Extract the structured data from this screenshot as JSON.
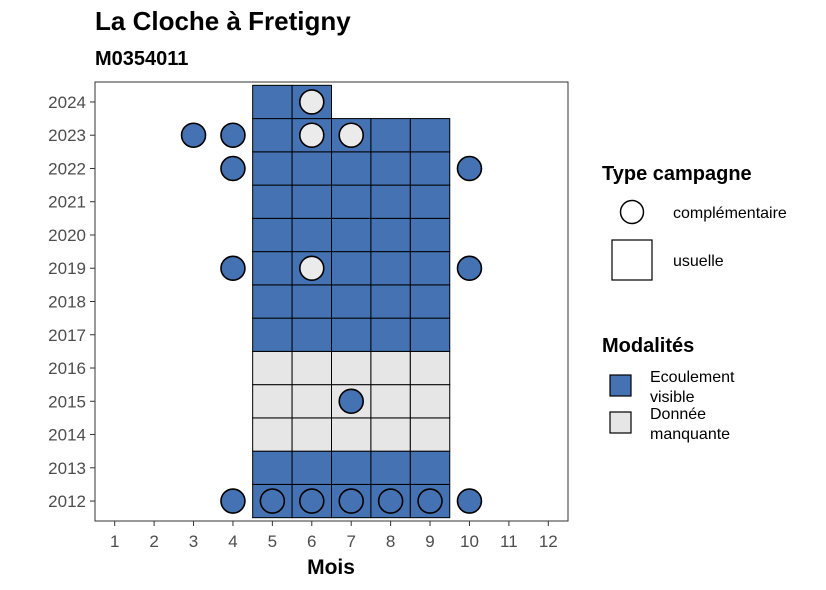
{
  "chart_data": {
    "type": "heatmap",
    "title": "La Cloche à Fretigny",
    "subtitle": "M0354011",
    "xlabel": "Mois",
    "ylabel": "",
    "x_ticks": [
      "1",
      "2",
      "3",
      "4",
      "5",
      "6",
      "7",
      "8",
      "9",
      "10",
      "11",
      "12"
    ],
    "y_ticks": [
      "2012",
      "2013",
      "2014",
      "2015",
      "2016",
      "2017",
      "2018",
      "2019",
      "2020",
      "2021",
      "2022",
      "2023",
      "2024"
    ],
    "xlim": [
      0.5,
      12.5
    ],
    "ylim": [
      2011.4,
      2024.6
    ],
    "grid": false,
    "colors": {
      "Ecoulement visible": "#4472b3",
      "Donnée manquante": "#e6e6e6",
      "complementaire_empty": "#ebebeb"
    },
    "tiles": [
      {
        "year": 2012,
        "month": 5,
        "mod": "Ecoulement visible"
      },
      {
        "year": 2012,
        "month": 6,
        "mod": "Ecoulement visible"
      },
      {
        "year": 2012,
        "month": 7,
        "mod": "Ecoulement visible"
      },
      {
        "year": 2012,
        "month": 8,
        "mod": "Ecoulement visible"
      },
      {
        "year": 2012,
        "month": 9,
        "mod": "Ecoulement visible"
      },
      {
        "year": 2013,
        "month": 5,
        "mod": "Ecoulement visible"
      },
      {
        "year": 2013,
        "month": 6,
        "mod": "Ecoulement visible"
      },
      {
        "year": 2013,
        "month": 7,
        "mod": "Ecoulement visible"
      },
      {
        "year": 2013,
        "month": 8,
        "mod": "Ecoulement visible"
      },
      {
        "year": 2013,
        "month": 9,
        "mod": "Ecoulement visible"
      },
      {
        "year": 2014,
        "month": 5,
        "mod": "Donnée manquante"
      },
      {
        "year": 2014,
        "month": 6,
        "mod": "Donnée manquante"
      },
      {
        "year": 2014,
        "month": 7,
        "mod": "Donnée manquante"
      },
      {
        "year": 2014,
        "month": 8,
        "mod": "Donnée manquante"
      },
      {
        "year": 2014,
        "month": 9,
        "mod": "Donnée manquante"
      },
      {
        "year": 2015,
        "month": 5,
        "mod": "Donnée manquante"
      },
      {
        "year": 2015,
        "month": 6,
        "mod": "Donnée manquante"
      },
      {
        "year": 2015,
        "month": 7,
        "mod": "Donnée manquante"
      },
      {
        "year": 2015,
        "month": 8,
        "mod": "Donnée manquante"
      },
      {
        "year": 2015,
        "month": 9,
        "mod": "Donnée manquante"
      },
      {
        "year": 2016,
        "month": 5,
        "mod": "Donnée manquante"
      },
      {
        "year": 2016,
        "month": 6,
        "mod": "Donnée manquante"
      },
      {
        "year": 2016,
        "month": 7,
        "mod": "Donnée manquante"
      },
      {
        "year": 2016,
        "month": 8,
        "mod": "Donnée manquante"
      },
      {
        "year": 2016,
        "month": 9,
        "mod": "Donnée manquante"
      },
      {
        "year": 2017,
        "month": 5,
        "mod": "Ecoulement visible"
      },
      {
        "year": 2017,
        "month": 6,
        "mod": "Ecoulement visible"
      },
      {
        "year": 2017,
        "month": 7,
        "mod": "Ecoulement visible"
      },
      {
        "year": 2017,
        "month": 8,
        "mod": "Ecoulement visible"
      },
      {
        "year": 2017,
        "month": 9,
        "mod": "Ecoulement visible"
      },
      {
        "year": 2018,
        "month": 5,
        "mod": "Ecoulement visible"
      },
      {
        "year": 2018,
        "month": 6,
        "mod": "Ecoulement visible"
      },
      {
        "year": 2018,
        "month": 7,
        "mod": "Ecoulement visible"
      },
      {
        "year": 2018,
        "month": 8,
        "mod": "Ecoulement visible"
      },
      {
        "year": 2018,
        "month": 9,
        "mod": "Ecoulement visible"
      },
      {
        "year": 2019,
        "month": 5,
        "mod": "Ecoulement visible"
      },
      {
        "year": 2019,
        "month": 6,
        "mod": "Ecoulement visible"
      },
      {
        "year": 2019,
        "month": 7,
        "mod": "Ecoulement visible"
      },
      {
        "year": 2019,
        "month": 8,
        "mod": "Ecoulement visible"
      },
      {
        "year": 2019,
        "month": 9,
        "mod": "Ecoulement visible"
      },
      {
        "year": 2020,
        "month": 5,
        "mod": "Ecoulement visible"
      },
      {
        "year": 2020,
        "month": 6,
        "mod": "Ecoulement visible"
      },
      {
        "year": 2020,
        "month": 7,
        "mod": "Ecoulement visible"
      },
      {
        "year": 2020,
        "month": 8,
        "mod": "Ecoulement visible"
      },
      {
        "year": 2020,
        "month": 9,
        "mod": "Ecoulement visible"
      },
      {
        "year": 2021,
        "month": 5,
        "mod": "Ecoulement visible"
      },
      {
        "year": 2021,
        "month": 6,
        "mod": "Ecoulement visible"
      },
      {
        "year": 2021,
        "month": 7,
        "mod": "Ecoulement visible"
      },
      {
        "year": 2021,
        "month": 8,
        "mod": "Ecoulement visible"
      },
      {
        "year": 2021,
        "month": 9,
        "mod": "Ecoulement visible"
      },
      {
        "year": 2022,
        "month": 5,
        "mod": "Ecoulement visible"
      },
      {
        "year": 2022,
        "month": 6,
        "mod": "Ecoulement visible"
      },
      {
        "year": 2022,
        "month": 7,
        "mod": "Ecoulement visible"
      },
      {
        "year": 2022,
        "month": 8,
        "mod": "Ecoulement visible"
      },
      {
        "year": 2022,
        "month": 9,
        "mod": "Ecoulement visible"
      },
      {
        "year": 2023,
        "month": 5,
        "mod": "Ecoulement visible"
      },
      {
        "year": 2023,
        "month": 6,
        "mod": "Ecoulement visible"
      },
      {
        "year": 2023,
        "month": 7,
        "mod": "Ecoulement visible"
      },
      {
        "year": 2023,
        "month": 8,
        "mod": "Ecoulement visible"
      },
      {
        "year": 2023,
        "month": 9,
        "mod": "Ecoulement visible"
      },
      {
        "year": 2024,
        "month": 5,
        "mod": "Ecoulement visible"
      },
      {
        "year": 2024,
        "month": 6,
        "mod": "Ecoulement visible"
      }
    ],
    "points": [
      {
        "year": 2024,
        "month": 6,
        "fill": "empty"
      },
      {
        "year": 2023,
        "month": 3,
        "fill": "Ecoulement visible"
      },
      {
        "year": 2023,
        "month": 4,
        "fill": "Ecoulement visible"
      },
      {
        "year": 2023,
        "month": 6,
        "fill": "empty"
      },
      {
        "year": 2023,
        "month": 7,
        "fill": "empty"
      },
      {
        "year": 2022,
        "month": 4,
        "fill": "Ecoulement visible"
      },
      {
        "year": 2022,
        "month": 10,
        "fill": "Ecoulement visible"
      },
      {
        "year": 2019,
        "month": 4,
        "fill": "Ecoulement visible"
      },
      {
        "year": 2019,
        "month": 6,
        "fill": "empty"
      },
      {
        "year": 2019,
        "month": 10,
        "fill": "Ecoulement visible"
      },
      {
        "year": 2015,
        "month": 7,
        "fill": "Ecoulement visible"
      },
      {
        "year": 2012,
        "month": 4,
        "fill": "Ecoulement visible"
      },
      {
        "year": 2012,
        "month": 5,
        "fill": "Ecoulement visible"
      },
      {
        "year": 2012,
        "month": 6,
        "fill": "Ecoulement visible"
      },
      {
        "year": 2012,
        "month": 7,
        "fill": "Ecoulement visible"
      },
      {
        "year": 2012,
        "month": 8,
        "fill": "Ecoulement visible"
      },
      {
        "year": 2012,
        "month": 9,
        "fill": "Ecoulement visible"
      },
      {
        "year": 2012,
        "month": 10,
        "fill": "Ecoulement visible"
      }
    ],
    "legend": {
      "placement": "right",
      "shape_title": "Type campagne",
      "shape_items": [
        {
          "label": "complémentaire",
          "shape": "circle"
        },
        {
          "label": "usuelle",
          "shape": "square"
        }
      ],
      "fill_title": "Modalités",
      "fill_items": [
        {
          "label_lines": [
            "Ecoulement",
            "visible"
          ],
          "color": "#4472b3"
        },
        {
          "label_lines": [
            "Donnée",
            "manquante"
          ],
          "color": "#e6e6e6"
        }
      ]
    }
  }
}
